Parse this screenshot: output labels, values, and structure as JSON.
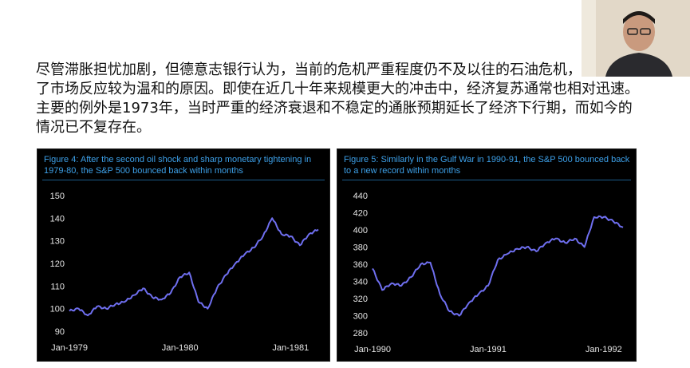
{
  "paragraph": {
    "text": "尽管滞胀担忧加剧，但德意志银行认为，当前的危机严重程度仍不及以往的石油危机，这也解释了市场反应较为温和的原因。即使在近几十年来规模更大的冲击中，经济复苏通常也相对迅速。主要的例外是1973年，当时严重的经济衰退和不稳定的通胀预期延长了经济下行期，而如今的情况已不复存在。"
  },
  "colors": {
    "line": "#6f6ff0",
    "panel_bg": "#000000",
    "title": "#3da0e8",
    "ticks": "#e6e6e6"
  },
  "figures": [
    {
      "title": "Figure 4: After the second oil shock and sharp monetary tightening in 1979-80, the S&P 500 bounced back within months"
    },
    {
      "title": "Figure 5: Similarly in the Gulf War in 1990-91, the S&P 500 bounced back to a new record within months"
    }
  ],
  "chart_data": [
    {
      "type": "line",
      "title": "Figure 4: After the second oil shock and sharp monetary tightening in 1979-80, the S&P 500 bounced back within months",
      "xlabel": "",
      "ylabel": "",
      "x_ticks": [
        "Jan-1979",
        "Jan-1980",
        "Jan-1981"
      ],
      "y_ticks": [
        90,
        100,
        110,
        120,
        130,
        140,
        150
      ],
      "xlim": [
        "1979-01",
        "1981-04"
      ],
      "ylim": [
        90,
        150
      ],
      "grid": false,
      "series": [
        {
          "x": [
            "1979-01",
            "1979-02",
            "1979-03",
            "1979-04",
            "1979-05",
            "1979-06",
            "1979-07",
            "1979-08",
            "1979-09",
            "1979-10",
            "1979-11",
            "1979-12",
            "1980-01",
            "1980-02",
            "1980-03",
            "1980-04",
            "1980-05",
            "1980-06",
            "1980-07",
            "1980-08",
            "1980-09",
            "1980-10",
            "1980-11",
            "1980-12",
            "1981-01",
            "1981-02",
            "1981-03",
            "1981-04"
          ],
          "values": [
            99,
            100,
            97,
            101,
            100,
            102,
            103,
            106,
            109,
            105,
            104,
            107,
            114,
            116,
            103,
            100,
            109,
            115,
            120,
            124,
            127,
            132,
            140,
            133,
            132,
            128,
            133,
            135
          ]
        }
      ]
    },
    {
      "type": "line",
      "title": "Figure 5: Similarly in the Gulf War in 1990-91, the S&P 500 bounced back to a new record within months",
      "xlabel": "",
      "ylabel": "",
      "x_ticks": [
        "Jan-1990",
        "Jan-1991",
        "Jan-1992"
      ],
      "y_ticks": [
        280,
        300,
        320,
        340,
        360,
        380,
        400,
        420,
        440
      ],
      "xlim": [
        "1990-01",
        "1992-03"
      ],
      "ylim": [
        280,
        440
      ],
      "grid": false,
      "series": [
        {
          "x": [
            "1990-01",
            "1990-02",
            "1990-03",
            "1990-04",
            "1990-05",
            "1990-06",
            "1990-07",
            "1990-08",
            "1990-09",
            "1990-10",
            "1990-11",
            "1990-12",
            "1991-01",
            "1991-02",
            "1991-03",
            "1991-04",
            "1991-05",
            "1991-06",
            "1991-07",
            "1991-08",
            "1991-09",
            "1991-10",
            "1991-11",
            "1991-12",
            "1992-01",
            "1992-02",
            "1992-03"
          ],
          "values": [
            355,
            330,
            338,
            335,
            345,
            360,
            362,
            325,
            305,
            300,
            315,
            325,
            335,
            365,
            372,
            378,
            380,
            375,
            385,
            390,
            385,
            390,
            380,
            415,
            415,
            410,
            403
          ]
        }
      ]
    }
  ]
}
